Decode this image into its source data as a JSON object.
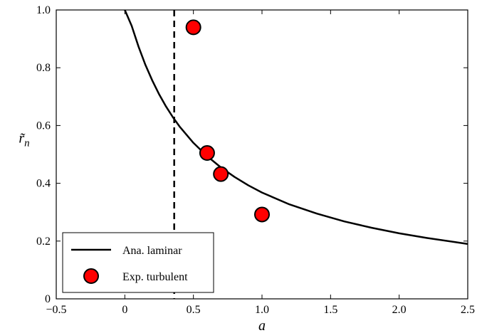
{
  "chart_data": {
    "type": "line",
    "title": "",
    "xlabel": "a",
    "ylabel": "r̃n",
    "xlim": [
      -0.5,
      2.5
    ],
    "ylim": [
      0,
      1.0
    ],
    "x_ticks": [
      -0.5,
      0,
      0.5,
      1.0,
      1.5,
      2.0,
      2.5
    ],
    "x_tick_labels": [
      "−0.5",
      "0",
      "0.5",
      "1.0",
      "1.5",
      "2.0",
      "2.5"
    ],
    "y_ticks": [
      0,
      0.2,
      0.4,
      0.6,
      0.8,
      1.0
    ],
    "y_tick_labels": [
      "0",
      "0.2",
      "0.4",
      "0.6",
      "0.8",
      "1.0"
    ],
    "grid": false,
    "legend_position": "lower-left",
    "vertical_line": {
      "x": 0.36,
      "style": "dashed",
      "color": "#000000"
    },
    "series": [
      {
        "name": "Ana. laminar",
        "kind": "line",
        "color": "#000000",
        "x": [
          0.0,
          0.05,
          0.1,
          0.15,
          0.2,
          0.25,
          0.3,
          0.35,
          0.4,
          0.5,
          0.6,
          0.7,
          0.8,
          0.9,
          1.0,
          1.2,
          1.4,
          1.6,
          1.8,
          2.0,
          2.2,
          2.4,
          2.5
        ],
        "y": [
          1.0,
          0.945,
          0.873,
          0.81,
          0.756,
          0.708,
          0.666,
          0.629,
          0.596,
          0.54,
          0.494,
          0.455,
          0.422,
          0.393,
          0.368,
          0.327,
          0.295,
          0.268,
          0.246,
          0.227,
          0.211,
          0.197,
          0.19
        ]
      },
      {
        "name": "Exp. turbulent",
        "kind": "scatter",
        "color": "#ff0000",
        "edge_color": "#000000",
        "x": [
          0.5,
          0.6,
          0.7,
          1.0
        ],
        "y": [
          0.94,
          0.505,
          0.432,
          0.292
        ]
      }
    ]
  }
}
